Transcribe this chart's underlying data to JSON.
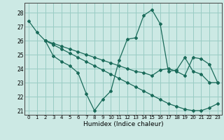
{
  "title": "",
  "xlabel": "Humidex (Indice chaleur)",
  "xlim": [
    -0.5,
    23.5
  ],
  "ylim": [
    20.7,
    28.7
  ],
  "yticks": [
    21,
    22,
    23,
    24,
    25,
    26,
    27,
    28
  ],
  "xticks": [
    0,
    1,
    2,
    3,
    4,
    5,
    6,
    7,
    8,
    9,
    10,
    11,
    12,
    13,
    14,
    15,
    16,
    17,
    18,
    19,
    20,
    21,
    22,
    23
  ],
  "bg_color": "#cce9e4",
  "grid_color": "#99ccc4",
  "line_color": "#1a6b5a",
  "line1_x": [
    0,
    1,
    2,
    3,
    4,
    5,
    6,
    7,
    8,
    9,
    10,
    11,
    12,
    13,
    14,
    15,
    16,
    17,
    18,
    19,
    20,
    21,
    22,
    23
  ],
  "line1_y": [
    27.4,
    26.6,
    26.0,
    24.9,
    24.5,
    24.2,
    23.7,
    22.2,
    21.0,
    21.8,
    22.4,
    24.6,
    26.1,
    26.2,
    27.8,
    28.2,
    27.2,
    23.8,
    23.9,
    24.8,
    23.8,
    23.6,
    23.0,
    23.0
  ],
  "line2_x": [
    2,
    3,
    4,
    5,
    6,
    7,
    8,
    9,
    10,
    11,
    12,
    13,
    14,
    15,
    16,
    17,
    18,
    19,
    20,
    21,
    22,
    23
  ],
  "line2_y": [
    26.0,
    25.8,
    25.6,
    25.4,
    25.2,
    25.0,
    24.8,
    24.6,
    24.4,
    24.2,
    24.0,
    23.8,
    23.7,
    23.5,
    23.9,
    24.0,
    23.8,
    23.5,
    24.8,
    24.7,
    24.3,
    23.0
  ],
  "line3_x": [
    2,
    3,
    4,
    5,
    6,
    7,
    8,
    9,
    10,
    11,
    12,
    13,
    14,
    15,
    16,
    17,
    18,
    19,
    20,
    21,
    22,
    23
  ],
  "line3_y": [
    26.0,
    25.7,
    25.4,
    25.1,
    24.8,
    24.5,
    24.2,
    23.9,
    23.6,
    23.3,
    23.0,
    22.7,
    22.4,
    22.1,
    21.8,
    21.5,
    21.3,
    21.1,
    21.0,
    21.0,
    21.2,
    21.5
  ]
}
